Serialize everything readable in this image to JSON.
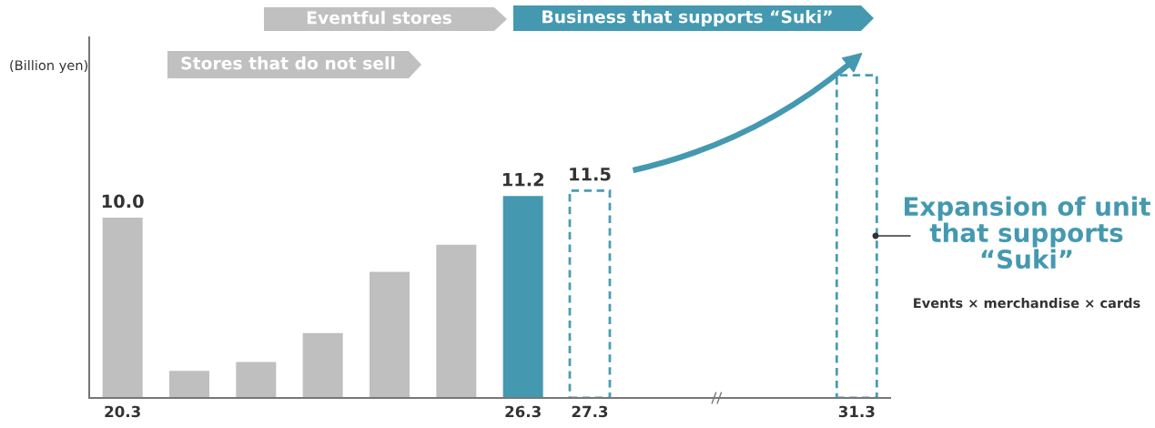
{
  "chart_data": {
    "type": "bar",
    "ylabel": "(Billion yen)",
    "relative": false,
    "categories": [
      "20.3",
      null,
      null,
      null,
      null,
      null,
      "26.3",
      "27.3",
      null,
      null,
      null,
      "31.3"
    ],
    "ylim": [
      0,
      20
    ],
    "series": [
      {
        "colors": [
          "#bfbfbf",
          "#bfbfbf",
          "#bfbfbf",
          "#bfbfbf",
          "#bfbfbf",
          "#bfbfbf",
          "#4499b0",
          null,
          null,
          null,
          null,
          null
        ],
        "values": [
          10.0,
          1.5,
          2.0,
          3.6,
          7.0,
          8.5,
          11.2,
          null,
          null,
          null,
          null,
          null
        ],
        "value_labels": [
          "10.0",
          null,
          null,
          null,
          null,
          null,
          "11.2",
          null,
          null,
          null,
          null,
          null
        ]
      },
      {
        "color": "#4a9db3",
        "line_style": "dashed",
        "values": [
          null,
          null,
          null,
          null,
          null,
          null,
          null,
          11.5,
          null,
          null,
          null,
          17.9
        ],
        "value_labels": [
          null,
          null,
          null,
          null,
          null,
          null,
          null,
          "11.5",
          null,
          null,
          null,
          null
        ]
      }
    ],
    "annotations": [
      "Eventful stores",
      "Business that supports “Suki”",
      "Stores that do not sell",
      "Expansion of unit that supports “Suki”",
      "Events × merchandise × cards"
    ],
    "grid": false,
    "legend": false
  }
}
